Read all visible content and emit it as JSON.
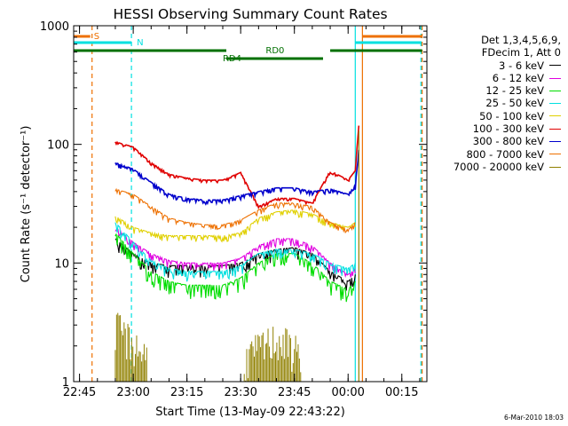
{
  "chart_data": {
    "type": "line",
    "title": "HESSI Observing Summary Count Rates",
    "xlabel": "Start Time (13-May-09 22:43:22)",
    "ylabel": "Count Rate (s⁻¹ detector⁻¹)",
    "xlim": [
      "22:43:22",
      "00:22:00"
    ],
    "ylim": [
      1,
      1000
    ],
    "yscale": "log",
    "x_ticks": [
      "22:45",
      "23:00",
      "23:15",
      "23:30",
      "23:45",
      "00:00",
      "00:15"
    ],
    "y_ticks": [
      "1",
      "10",
      "100",
      "1000"
    ],
    "legend_header": [
      "Det 1,3,4,5,6,9,",
      "FDecim 1, Att 0"
    ],
    "legend_position": "right",
    "series": [
      {
        "name": "3 - 6 keV",
        "color": "#000000",
        "x": [
          "22:55",
          "23:00",
          "23:05",
          "23:10",
          "23:15",
          "23:20",
          "23:25",
          "23:30",
          "23:35",
          "23:40",
          "23:45",
          "23:50",
          "23:55",
          "00:00",
          "00:02"
        ],
        "y": [
          16,
          12,
          10,
          9.5,
          9.5,
          9.5,
          9.5,
          10,
          12,
          13,
          13.5,
          12,
          8.5,
          7,
          8
        ]
      },
      {
        "name": "6 - 12 keV",
        "color": "#e000e0",
        "x": [
          "22:55",
          "23:00",
          "23:05",
          "23:10",
          "23:15",
          "23:20",
          "23:25",
          "23:30",
          "23:35",
          "23:40",
          "23:45",
          "23:50",
          "23:55",
          "00:00",
          "00:02"
        ],
        "y": [
          20,
          15,
          12,
          10.5,
          10,
          10,
          10,
          11,
          14,
          16,
          16,
          14,
          10,
          8,
          9
        ]
      },
      {
        "name": "12 - 25 keV",
        "color": "#00dd00",
        "x": [
          "22:55",
          "23:00",
          "23:05",
          "23:10",
          "23:15",
          "23:20",
          "23:25",
          "23:30",
          "23:35",
          "23:40",
          "23:45",
          "23:50",
          "23:55",
          "00:00",
          "00:02"
        ],
        "y": [
          18,
          12,
          8.5,
          7,
          6.5,
          6.5,
          6.5,
          7.5,
          10,
          12,
          12,
          10,
          7,
          6,
          7
        ]
      },
      {
        "name": "25 - 50 keV",
        "color": "#00e0e0",
        "x": [
          "22:55",
          "23:00",
          "23:05",
          "23:10",
          "23:15",
          "23:20",
          "23:25",
          "23:30",
          "23:35",
          "23:40",
          "23:45",
          "23:50",
          "23:55",
          "00:00",
          "00:02"
        ],
        "y": [
          22,
          15,
          10.5,
          9,
          8.5,
          8.5,
          8.5,
          9.5,
          12,
          13,
          13,
          12,
          10,
          9,
          10
        ]
      },
      {
        "name": "50 - 100 keV",
        "color": "#e0d000",
        "x": [
          "22:55",
          "23:00",
          "23:05",
          "23:10",
          "23:15",
          "23:20",
          "23:25",
          "23:30",
          "23:35",
          "23:40",
          "23:45",
          "23:50",
          "23:55",
          "00:00",
          "00:02"
        ],
        "y": [
          25,
          20,
          18,
          17,
          17,
          17,
          17,
          18,
          24,
          27,
          28,
          26,
          22,
          20,
          22
        ]
      },
      {
        "name": "100 - 300 keV",
        "color": "#e00000",
        "x": [
          "22:55",
          "23:00",
          "23:05",
          "23:10",
          "23:15",
          "23:20",
          "23:25",
          "23:30",
          "23:35",
          "23:40",
          "23:45",
          "23:50",
          "23:55",
          "00:00",
          "00:02",
          "00:03"
        ],
        "y": [
          105,
          95,
          70,
          56,
          52,
          50,
          50,
          58,
          30,
          35,
          35,
          32,
          60,
          50,
          60,
          150
        ]
      },
      {
        "name": "300 - 800 keV",
        "color": "#0000cc",
        "x": [
          "22:55",
          "23:00",
          "23:05",
          "23:10",
          "23:15",
          "23:20",
          "23:25",
          "23:30",
          "23:35",
          "23:40",
          "23:45",
          "23:50",
          "23:55",
          "00:00",
          "00:02",
          "00:03"
        ],
        "y": [
          70,
          62,
          48,
          38,
          35,
          34,
          34,
          37,
          40,
          43,
          43,
          40,
          42,
          38,
          45,
          90
        ]
      },
      {
        "name": "800 - 7000 keV",
        "color": "#ee7000",
        "x": [
          "22:55",
          "23:00",
          "23:05",
          "23:10",
          "23:15",
          "23:20",
          "23:25",
          "23:30",
          "23:35",
          "23:40",
          "23:45",
          "23:50",
          "23:55",
          "00:00",
          "00:02"
        ],
        "y": [
          42,
          38,
          30,
          24,
          22,
          21,
          21,
          23,
          28,
          32,
          32,
          30,
          22,
          19,
          22
        ]
      },
      {
        "name": "7000 - 20000 keV",
        "color": "#908000",
        "x": [
          "22:55",
          "23:00",
          "23:05",
          "23:30",
          "23:35",
          "23:40",
          "23:45",
          "00:02",
          "00:03"
        ],
        "y": [
          2.5,
          1.8,
          1.3,
          1.3,
          1.6,
          2.0,
          1.6,
          1.2,
          130
        ]
      }
    ],
    "annotations": [
      {
        "text": "S",
        "color": "#ee7000"
      },
      {
        "text": "N",
        "color": "#00e0e0"
      },
      {
        "text": "RD0",
        "color": "#007000"
      },
      {
        "text": "RD4",
        "color": "#007000"
      }
    ],
    "timestamp": "6-Mar-2010 18:03"
  }
}
